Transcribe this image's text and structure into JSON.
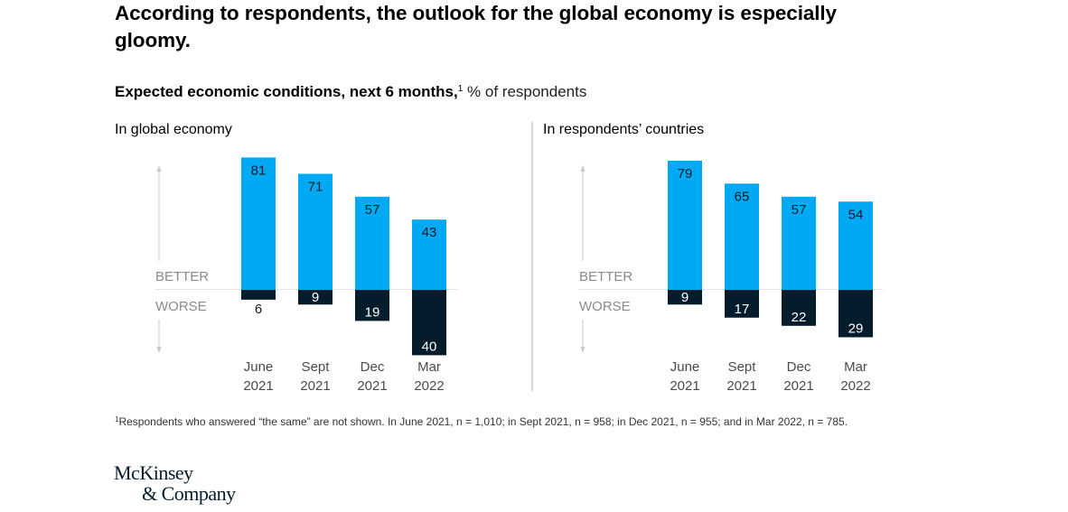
{
  "title": "According to respondents, the outlook for the global economy is especially gloomy.",
  "subtitle": {
    "bold": "Expected economic conditions, next 6 months,",
    "footnote_mark": "1",
    "unit": "% of respondents"
  },
  "colors": {
    "better": "#00a9f4",
    "worse": "#051c2c",
    "axis": "#c8c8c8",
    "axis_label": "#8a8a8a"
  },
  "footnote": {
    "mark": "1",
    "text": "Respondents who answered “the same” are not shown. In June 2021, n = 1,010; in Sept 2021, n = 958; in Dec 2021, n = 955; and in Mar 2022, n = 785."
  },
  "logo": {
    "line1": "McKinsey",
    "line2": "& Company"
  },
  "chart_data": [
    {
      "type": "bar",
      "title": "In global economy",
      "categories": [
        [
          "June",
          "2021"
        ],
        [
          "Sept",
          "2021"
        ],
        [
          "Dec",
          "2021"
        ],
        [
          "Mar",
          "2022"
        ]
      ],
      "axis_labels": {
        "up": "BETTER",
        "down": "WORSE"
      },
      "series": [
        {
          "name": "Better",
          "values": [
            81,
            71,
            57,
            43
          ]
        },
        {
          "name": "Worse",
          "values": [
            6,
            9,
            19,
            40
          ]
        }
      ],
      "ylim": [
        -40,
        81
      ],
      "grid": false,
      "legend": "none"
    },
    {
      "type": "bar",
      "title": "In respondents’ countries",
      "categories": [
        [
          "June",
          "2021"
        ],
        [
          "Sept",
          "2021"
        ],
        [
          "Dec",
          "2021"
        ],
        [
          "Mar",
          "2022"
        ]
      ],
      "axis_labels": {
        "up": "BETTER",
        "down": "WORSE"
      },
      "series": [
        {
          "name": "Better",
          "values": [
            79,
            65,
            57,
            54
          ]
        },
        {
          "name": "Worse",
          "values": [
            9,
            17,
            22,
            29
          ]
        }
      ],
      "ylim": [
        -40,
        81
      ],
      "grid": false,
      "legend": "none"
    }
  ]
}
